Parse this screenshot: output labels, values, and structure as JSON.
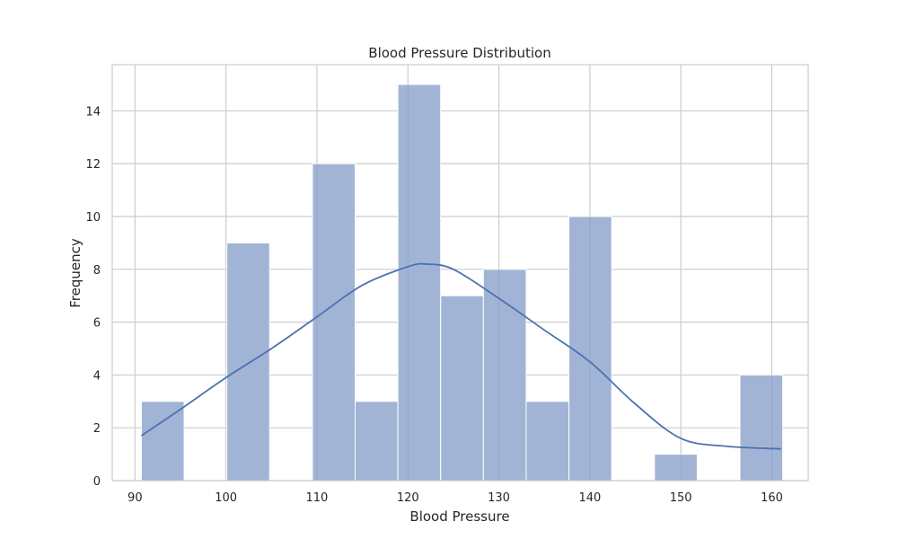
{
  "chart_data": {
    "type": "bar",
    "title": "Blood Pressure Distribution",
    "xlabel": "Blood Pressure",
    "ylabel": "Frequency",
    "xlim": [
      87.5,
      164
    ],
    "ylim": [
      0,
      15.75
    ],
    "xticks": [
      90,
      100,
      110,
      120,
      130,
      140,
      150,
      160
    ],
    "yticks": [
      0,
      2,
      4,
      6,
      8,
      10,
      12,
      14
    ],
    "grid": true,
    "bins": [
      {
        "start": 90.7,
        "end": 95.4,
        "count": 3
      },
      {
        "start": 95.4,
        "end": 100.1,
        "count": 0
      },
      {
        "start": 100.1,
        "end": 104.8,
        "count": 9
      },
      {
        "start": 104.8,
        "end": 109.5,
        "count": 0
      },
      {
        "start": 109.5,
        "end": 114.2,
        "count": 12
      },
      {
        "start": 114.2,
        "end": 118.9,
        "count": 3
      },
      {
        "start": 118.9,
        "end": 123.6,
        "count": 15
      },
      {
        "start": 123.6,
        "end": 128.3,
        "count": 7
      },
      {
        "start": 128.3,
        "end": 133.0,
        "count": 8
      },
      {
        "start": 133.0,
        "end": 137.7,
        "count": 3
      },
      {
        "start": 137.7,
        "end": 142.4,
        "count": 10
      },
      {
        "start": 142.4,
        "end": 147.1,
        "count": 0
      },
      {
        "start": 147.1,
        "end": 151.8,
        "count": 1
      },
      {
        "start": 151.8,
        "end": 156.5,
        "count": 0
      },
      {
        "start": 156.5,
        "end": 161.2,
        "count": 4
      }
    ],
    "kde": {
      "x": [
        90.7,
        95,
        100,
        105,
        110,
        115,
        120,
        122,
        125,
        130,
        135,
        140,
        145,
        150,
        155,
        161
      ],
      "y": [
        1.7,
        2.7,
        3.9,
        5.0,
        6.2,
        7.4,
        8.1,
        8.2,
        8.0,
        6.9,
        5.7,
        4.5,
        2.9,
        1.6,
        1.3,
        1.2
      ]
    },
    "colors": {
      "bar_fill": "#a2b4d6",
      "bar_edge": "#ffffff",
      "kde_line": "#4c72b0",
      "grid": "#cccccc",
      "frame": "#cccccc",
      "text": "#262626"
    }
  }
}
